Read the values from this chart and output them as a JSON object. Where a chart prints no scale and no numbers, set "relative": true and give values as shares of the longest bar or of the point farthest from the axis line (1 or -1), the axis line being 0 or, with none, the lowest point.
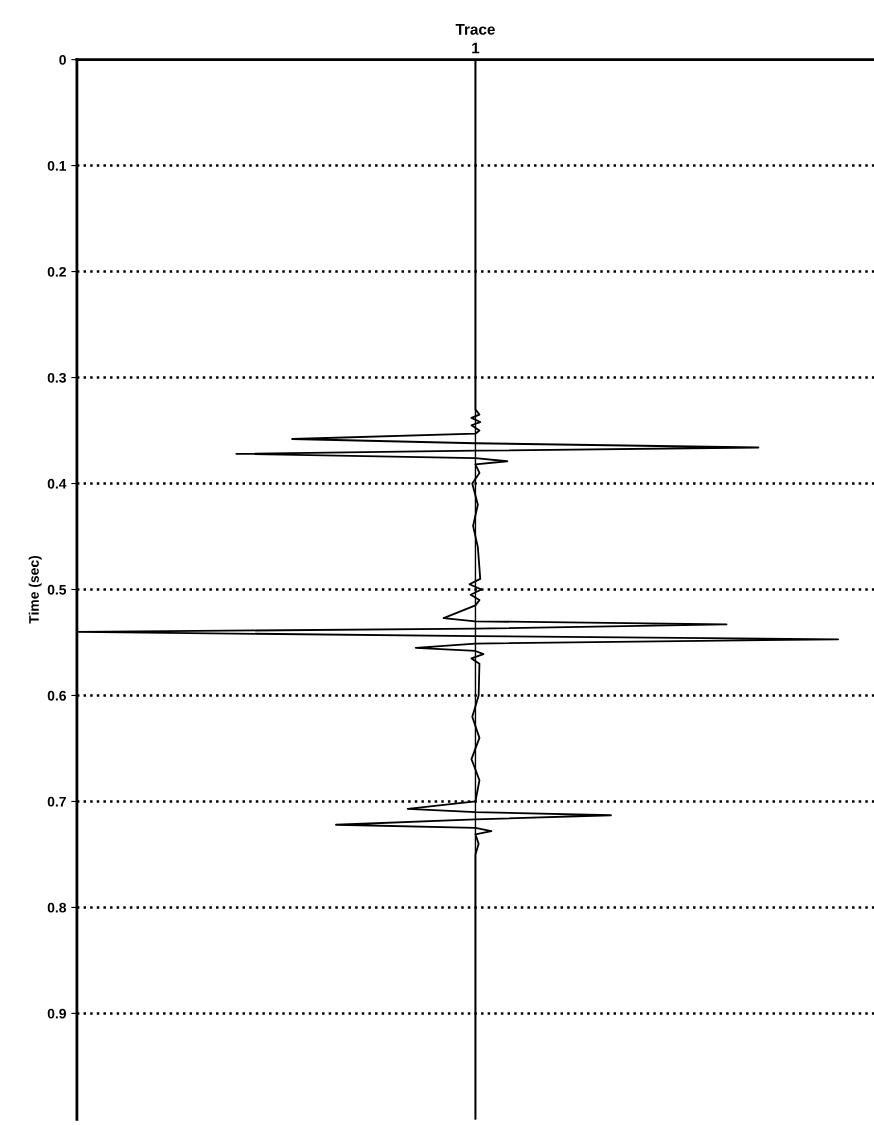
{
  "chart_data": {
    "type": "line",
    "orientation": "horizontal",
    "relative": true,
    "xlabel": "Trace",
    "ylabel": "Time (sec)",
    "ylim": [
      1.0,
      0
    ],
    "yticks": [
      0,
      0.1,
      0.2,
      0.3,
      0.4,
      0.5,
      0.6,
      0.7,
      0.8,
      0.9
    ],
    "grid": "y",
    "line_style": "solid",
    "marker": "none",
    "x": [
      0,
      0.33,
      0.335,
      0.338,
      0.342,
      0.345,
      0.35,
      0.353,
      0.358,
      0.362,
      0.366,
      0.369,
      0.372,
      0.376,
      0.379,
      0.382,
      0.39,
      0.4,
      0.42,
      0.44,
      0.46,
      0.49,
      0.495,
      0.5,
      0.505,
      0.51,
      0.515,
      0.527,
      0.53,
      0.533,
      0.537,
      0.54,
      0.544,
      0.547,
      0.551,
      0.555,
      0.558,
      0.561,
      0.565,
      0.57,
      0.6,
      0.62,
      0.64,
      0.66,
      0.68,
      0.7,
      0.707,
      0.71,
      0.713,
      0.717,
      0.722,
      0.725,
      0.728,
      0.731,
      0.74,
      0.75,
      1.0
    ],
    "series": [
      {
        "name": "1",
        "color": "#000000",
        "values": [
          0,
          0,
          0.01,
          -0.01,
          0.012,
          -0.01,
          0.01,
          0,
          -0.46,
          0,
          0.71,
          0,
          -0.6,
          0,
          0.08,
          0,
          0.01,
          -0.008,
          0.006,
          -0.006,
          0.006,
          0.012,
          -0.015,
          0.015,
          -0.012,
          0.01,
          0,
          -0.08,
          0,
          0.63,
          0,
          -1.0,
          0,
          0.91,
          0,
          -0.15,
          0,
          0.02,
          -0.01,
          0.01,
          0.008,
          -0.008,
          0.01,
          -0.01,
          0.01,
          0,
          -0.17,
          0,
          0.34,
          0,
          -0.35,
          0,
          0.04,
          0,
          0.008,
          0,
          0
        ]
      }
    ]
  }
}
